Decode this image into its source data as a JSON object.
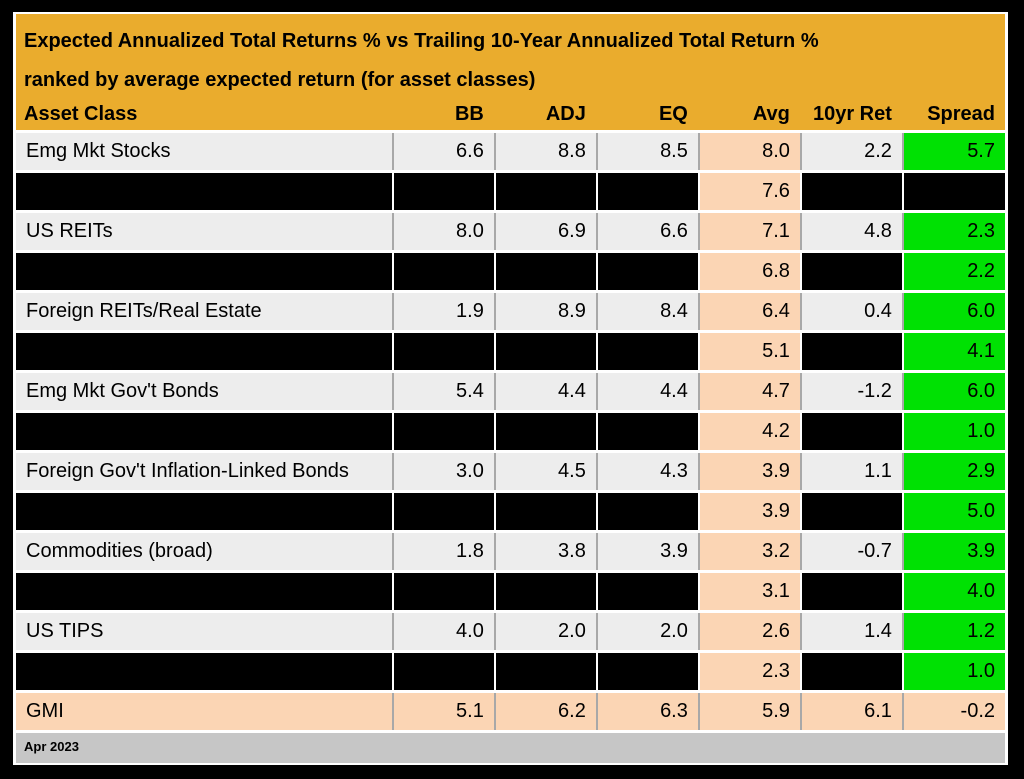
{
  "title": {
    "line1": "Expected Annualized Total Returns % vs Trailing 10-Year Annualized Total Return %",
    "line2": "ranked by average expected return (for asset classes)"
  },
  "footer": {
    "date_label": "Apr 2023"
  },
  "colors": {
    "frame_black": "#000000",
    "header_orange": "#EAAC2D",
    "row_gray": "#EDEDED",
    "avg_peach": "#FBD5B4",
    "spread_green": "#00E103",
    "footer_gray": "#C6C6C6",
    "grid_white": "#FFFFFF",
    "grid_gray": "#A8A8A8",
    "text_black": "#000000"
  },
  "chart_data": {
    "type": "table",
    "title": "Expected Annualized Total Returns % vs Trailing 10-Year Annualized Total Return % ranked by average expected return (for asset classes)",
    "columns": [
      "Asset Class",
      "BB",
      "ADJ",
      "EQ",
      "Avg",
      "10yr Ret",
      "Spread"
    ],
    "rows": [
      {
        "variant": "normal",
        "cells": [
          "Emg Mkt Stocks",
          "6.6",
          "8.8",
          "8.5",
          "8.0",
          "2.2",
          "5.7"
        ]
      },
      {
        "variant": "redacted",
        "cells": [
          "",
          "",
          "",
          "",
          "7.6",
          "",
          ""
        ]
      },
      {
        "variant": "normal",
        "cells": [
          "US REITs",
          "8.0",
          "6.9",
          "6.6",
          "7.1",
          "4.8",
          "2.3"
        ]
      },
      {
        "variant": "redacted",
        "cells": [
          "",
          "",
          "",
          "",
          "6.8",
          "",
          "2.2"
        ]
      },
      {
        "variant": "normal",
        "cells": [
          "Foreign REITs/Real Estate",
          "1.9",
          "8.9",
          "8.4",
          "6.4",
          "0.4",
          "6.0"
        ]
      },
      {
        "variant": "redacted",
        "cells": [
          "",
          "",
          "",
          "",
          "5.1",
          "",
          "4.1"
        ]
      },
      {
        "variant": "normal",
        "cells": [
          "Emg Mkt Gov't Bonds",
          "5.4",
          "4.4",
          "4.4",
          "4.7",
          "-1.2",
          "6.0"
        ]
      },
      {
        "variant": "redacted",
        "cells": [
          "",
          "",
          "",
          "",
          "4.2",
          "",
          "1.0"
        ]
      },
      {
        "variant": "normal",
        "cells": [
          "Foreign Gov't Inflation-Linked Bonds",
          "3.0",
          "4.5",
          "4.3",
          "3.9",
          "1.1",
          "2.9"
        ]
      },
      {
        "variant": "redacted",
        "cells": [
          "",
          "",
          "",
          "",
          "3.9",
          "",
          "5.0"
        ]
      },
      {
        "variant": "normal",
        "cells": [
          "Commodities (broad)",
          "1.8",
          "3.8",
          "3.9",
          "3.2",
          "-0.7",
          "3.9"
        ]
      },
      {
        "variant": "redacted",
        "cells": [
          "",
          "",
          "",
          "",
          "3.1",
          "",
          "4.0"
        ]
      },
      {
        "variant": "normal",
        "cells": [
          "US TIPS",
          "4.0",
          "2.0",
          "2.0",
          "2.6",
          "1.4",
          "1.2"
        ]
      },
      {
        "variant": "redacted",
        "cells": [
          "",
          "",
          "",
          "",
          "2.3",
          "",
          "1.0"
        ]
      },
      {
        "variant": "gmi",
        "cells": [
          "GMI",
          "5.1",
          "6.2",
          "6.3",
          "5.9",
          "6.1",
          "-0.2"
        ]
      }
    ],
    "footer": "Apr 2023"
  }
}
